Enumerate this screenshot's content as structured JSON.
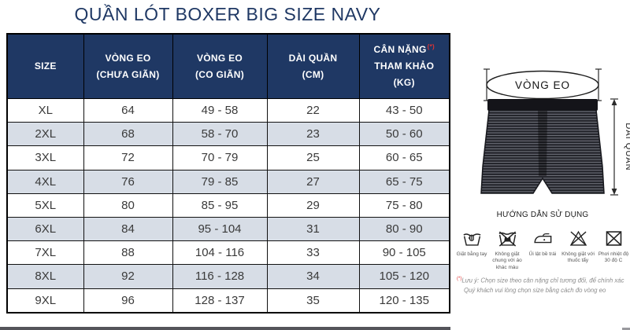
{
  "title": "QUẦN LÓT BOXER BIG SIZE NAVY",
  "colors": {
    "navy": "#1F3864",
    "row_alt": "#D7DDE6",
    "asterisk_red": "#E03434",
    "note_gray": "#8C8C8C"
  },
  "table": {
    "col_keys": [
      "size",
      "vong-eo-chua-gian",
      "vong-eo-co-gian",
      "dai-quan",
      "can-nang"
    ],
    "headers": [
      {
        "line1": "SIZE"
      },
      {
        "line1": "VÒNG EO",
        "line2": "(CHƯA GIÃN)"
      },
      {
        "line1": "VÒNG EO",
        "line2": "(CO GIÃN)"
      },
      {
        "line1": "DÀI QUẦN",
        "line2": "(CM)"
      },
      {
        "line1": "CÂN NẶNG",
        "sup": "(*)",
        "line2": "THAM KHẢO",
        "line3": "(KG)"
      }
    ],
    "rows": [
      [
        "XL",
        "64",
        "49 - 58",
        "22",
        "43 - 50"
      ],
      [
        "2XL",
        "68",
        "58 - 70",
        "23",
        "50 - 60"
      ],
      [
        "3XL",
        "72",
        "70 - 79",
        "25",
        "60 - 65"
      ],
      [
        "4XL",
        "76",
        "79 - 85",
        "27",
        "65 - 75"
      ],
      [
        "5XL",
        "80",
        "85 - 95",
        "29",
        "75 - 80"
      ],
      [
        "6XL",
        "84",
        "95 - 104",
        "31",
        "80 - 90"
      ],
      [
        "7XL",
        "88",
        "104 - 116",
        "33",
        "90 - 105"
      ],
      [
        "8XL",
        "92",
        "116 - 128",
        "34",
        "105 - 120"
      ],
      [
        "9XL",
        "96",
        "128 - 137",
        "35",
        "120 - 135"
      ]
    ]
  },
  "diagram": {
    "waist_label": "VÒNG EO",
    "length_label": "DÀI QUẦN"
  },
  "care": {
    "heading": "HƯỚNG DẪN SỬ DỤNG",
    "items": [
      {
        "icon": "handwash-icon",
        "label": "Giặt bằng tay"
      },
      {
        "icon": "no-mixed-colors-wash-icon",
        "label": "Không giặt chung với áo khác màu"
      },
      {
        "icon": "iron-inside-out-icon",
        "label": "Ủi lật bề trái"
      },
      {
        "icon": "no-bleach-icon",
        "label": "Không giặt với thuốc tẩy"
      },
      {
        "icon": "dry-30c-icon",
        "label": "Phơi nhiệt độ 30 độ C"
      }
    ]
  },
  "note": {
    "asterisk": "(*)",
    "line1": "Lưu ý: Chọn size theo cân nặng chỉ tương đối, để chính xác",
    "line2": "Quý khách vui lòng chọn size bằng cách đo vòng eo"
  }
}
